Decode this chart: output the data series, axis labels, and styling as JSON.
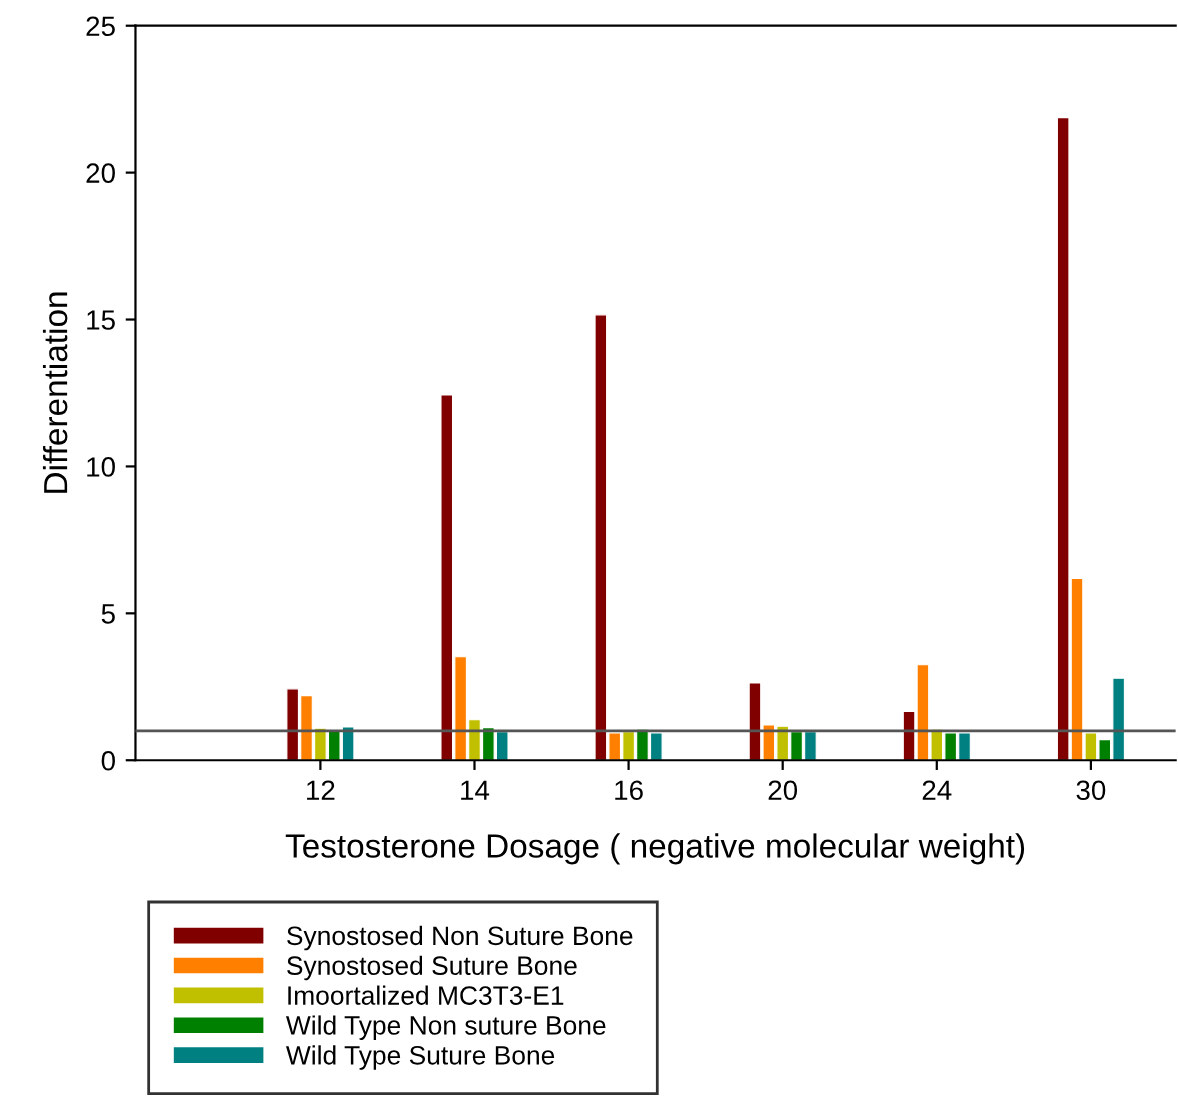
{
  "chart_data": {
    "type": "bar",
    "xlabel": "Testosterone Dosage ( negative molecular weight)",
    "ylabel": "Differentiation",
    "categories": [
      "12",
      "14",
      "16",
      "20",
      "24",
      "30"
    ],
    "series": [
      {
        "name": "Synostosed Non Suture Bone",
        "color": "#800000",
        "values": [
          2.43,
          12.43,
          15.16,
          2.63,
          1.66,
          21.87
        ]
      },
      {
        "name": "Synostosed Suture Bone",
        "color": "#ff8000",
        "values": [
          2.2,
          3.52,
          0.93,
          1.2,
          3.25,
          6.19
        ]
      },
      {
        "name": "Imoortalized MC3T3-E1",
        "color": "#c0c000",
        "values": [
          1.09,
          1.38,
          0.97,
          1.16,
          1.06,
          0.93
        ]
      },
      {
        "name": "Wild Type Non suture Bone",
        "color": "#008000",
        "values": [
          1.0,
          1.11,
          1.06,
          0.97,
          0.93,
          0.7
        ]
      },
      {
        "name": "Wild Type Suture Bone",
        "color": "#008080",
        "values": [
          1.13,
          0.97,
          0.93,
          0.97,
          0.93,
          2.79
        ]
      }
    ],
    "ylim": [
      0,
      25
    ],
    "yticks": [
      0,
      5,
      10,
      15,
      20,
      25
    ],
    "ref_lines": [
      {
        "axis": "y",
        "value": 1,
        "color": "#555555"
      }
    ],
    "grid": false,
    "legend": "bottom"
  }
}
